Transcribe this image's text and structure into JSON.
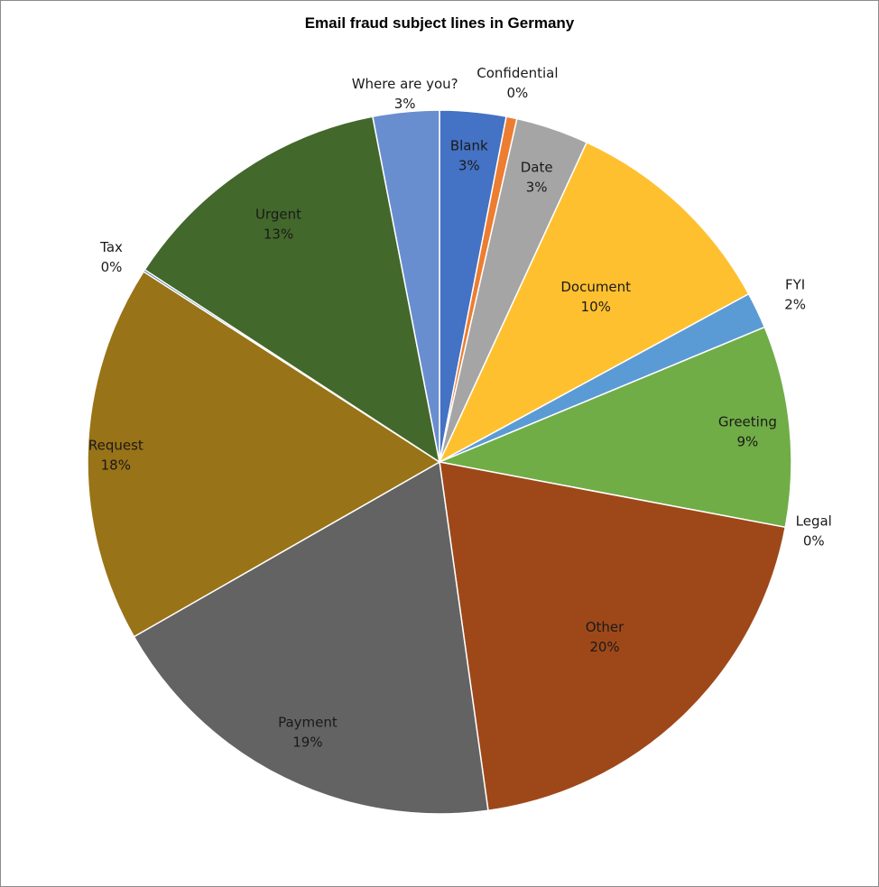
{
  "chart_data": {
    "type": "pie",
    "title": "Email fraud subject lines in Germany",
    "slices": [
      {
        "label": "Blank",
        "value": 3.1,
        "display": "3%",
        "color": "#4472c4"
      },
      {
        "label": "Confidential",
        "value": 0.5,
        "display": "0%",
        "color": "#ed7d31"
      },
      {
        "label": "Date",
        "value": 3.4,
        "display": "3%",
        "color": "#a5a5a5"
      },
      {
        "label": "Document",
        "value": 10.4,
        "display": "10%",
        "color": "#ffc030"
      },
      {
        "label": "FYI",
        "value": 1.7,
        "display": "2%",
        "color": "#5b9bd5"
      },
      {
        "label": "Greeting",
        "value": 9.4,
        "display": "9%",
        "color": "#70ad47"
      },
      {
        "label": "Legal",
        "value": 0.0,
        "display": "0%",
        "color": "#264478"
      },
      {
        "label": "Other",
        "value": 20.2,
        "display": "20%",
        "color": "#9e4819"
      },
      {
        "label": "Payment",
        "value": 19.3,
        "display": "19%",
        "color": "#636363"
      },
      {
        "label": "Request",
        "value": 17.7,
        "display": "18%",
        "color": "#997317"
      },
      {
        "label": "Tax",
        "value": 0.1,
        "display": "0%",
        "color": "#255e91"
      },
      {
        "label": "Urgent",
        "value": 13.0,
        "display": "13%",
        "color": "#43682b"
      },
      {
        "label": "Where are you?",
        "value": 3.1,
        "display": "3%",
        "color": "#698ed0"
      }
    ]
  }
}
